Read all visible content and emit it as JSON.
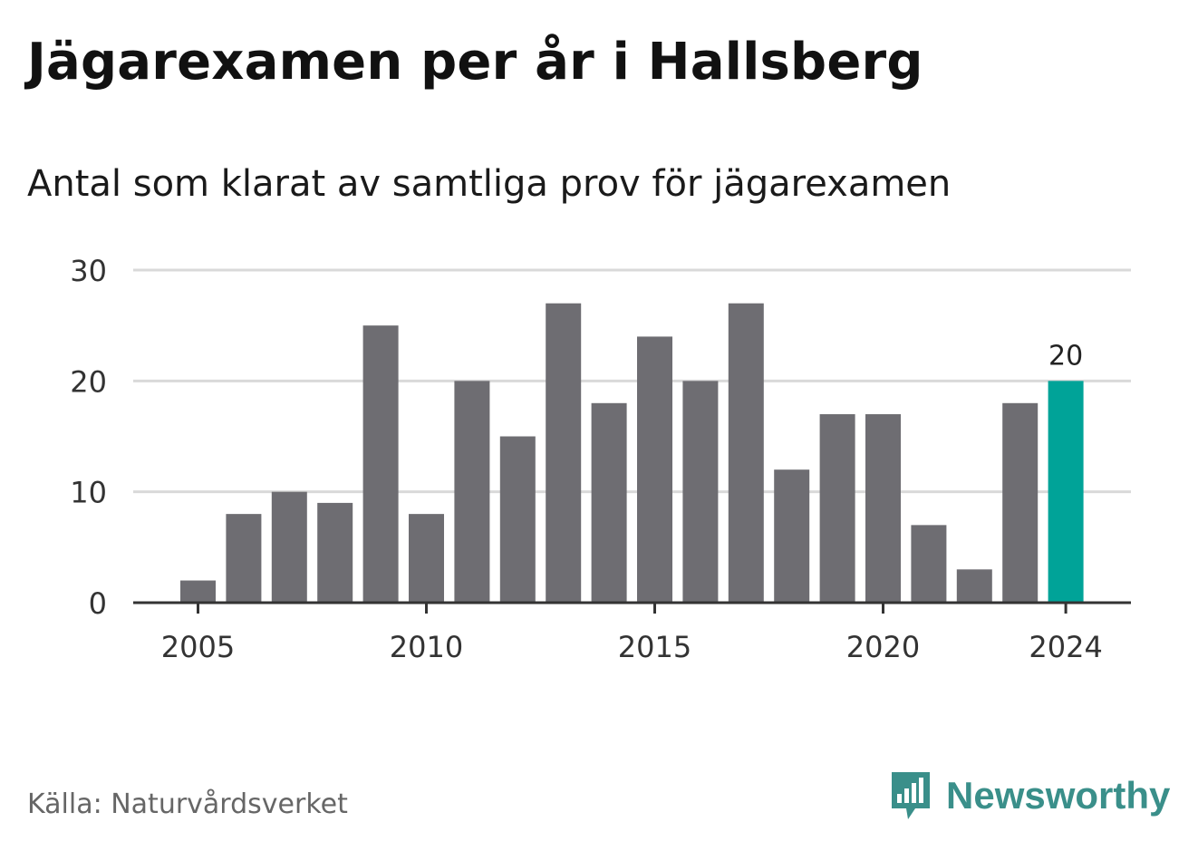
{
  "header": {
    "title": "Jägarexamen per år i Hallsberg",
    "subtitle": "Antal som klarat av samtliga prov för jägarexamen"
  },
  "footer": {
    "source": "Källa: Naturvårdsverket",
    "brand": "Newsworthy",
    "brand_icon": "newsworthy-logo-icon"
  },
  "colors": {
    "bar": "#6e6d72",
    "highlight": "#00a398",
    "grid": "#d9d9d9",
    "axis": "#333333",
    "brand": "#3a8f8a"
  },
  "chart_data": {
    "type": "bar",
    "title": "Jägarexamen per år i Hallsberg",
    "subtitle": "Antal som klarat av samtliga prov för jägarexamen",
    "xlabel": "",
    "ylabel": "",
    "categories": [
      2005,
      2006,
      2007,
      2008,
      2009,
      2010,
      2011,
      2012,
      2013,
      2014,
      2015,
      2016,
      2017,
      2018,
      2019,
      2020,
      2021,
      2022,
      2023,
      2024
    ],
    "values": [
      2,
      8,
      10,
      9,
      25,
      8,
      20,
      15,
      27,
      18,
      24,
      20,
      27,
      12,
      17,
      17,
      7,
      3,
      18,
      20
    ],
    "highlight_index": 19,
    "data_labels": [
      {
        "index": 19,
        "text": "20"
      }
    ],
    "ylim": [
      0,
      30
    ],
    "yticks": [
      0,
      10,
      20,
      30
    ],
    "xticks": [
      2005,
      2010,
      2015,
      2020,
      2024
    ],
    "grid": true,
    "legend": "none"
  }
}
